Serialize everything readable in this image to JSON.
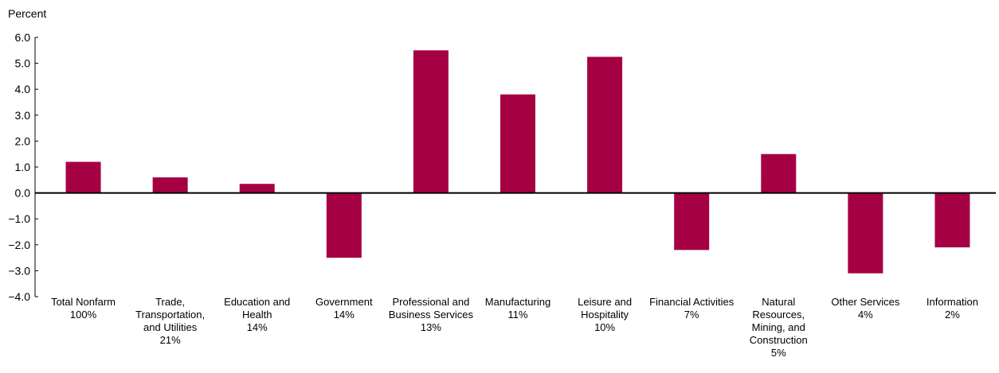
{
  "chart_data": {
    "type": "bar",
    "ylabel": "Percent",
    "ylim": [
      -4.0,
      6.0
    ],
    "yticks": [
      "6.0",
      "5.0",
      "4.0",
      "3.0",
      "2.0",
      "1.0",
      "0.0",
      "−1.0",
      "−2.0",
      "−3.0",
      "−4.0"
    ],
    "categories": [
      [
        "Total Nonfarm",
        "100%"
      ],
      [
        "Trade,",
        "Transportation,",
        "and Utilities",
        "21%"
      ],
      [
        "Education and",
        "Health",
        "14%"
      ],
      [
        "Government",
        "14%"
      ],
      [
        "Professional and",
        "Business Services",
        "13%"
      ],
      [
        "Manufacturing",
        "11%"
      ],
      [
        "Leisure and",
        "Hospitality",
        "10%"
      ],
      [
        "Financial Activities",
        "7%"
      ],
      [
        "Natural",
        "Resources,",
        "Mining, and",
        "Construction",
        "5%"
      ],
      [
        "Other Services",
        "4%"
      ],
      [
        "Information",
        "2%"
      ]
    ],
    "values": [
      1.2,
      0.6,
      0.35,
      -2.5,
      5.5,
      3.8,
      5.25,
      -2.2,
      1.5,
      -3.1,
      -2.1
    ],
    "bar_color": "#A50044",
    "axis_color": "#000000",
    "grid": false
  }
}
